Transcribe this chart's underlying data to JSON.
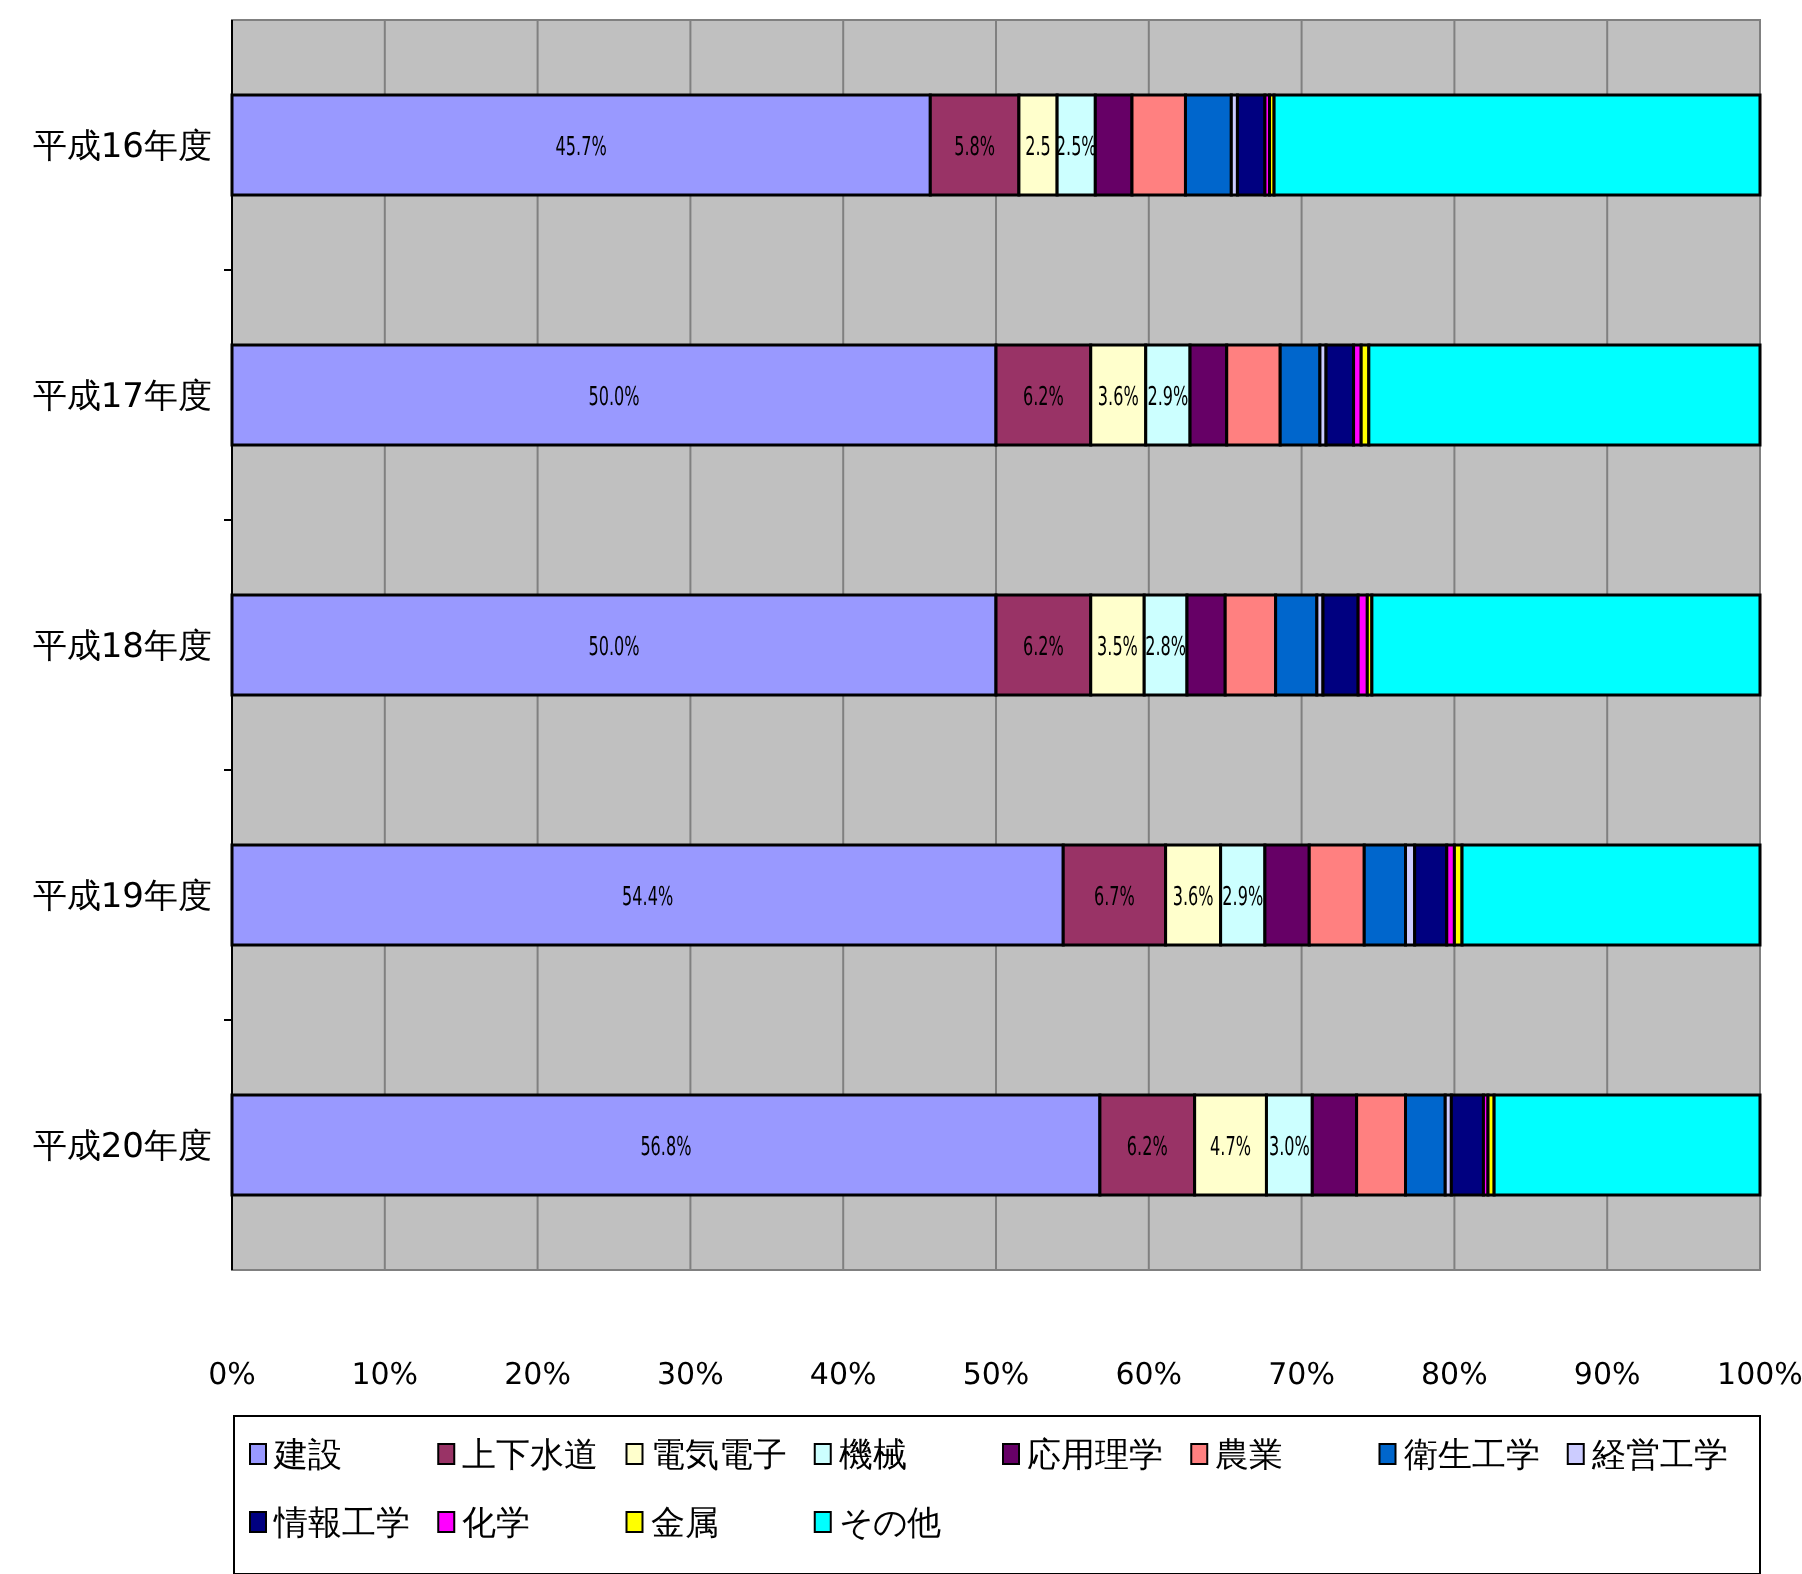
{
  "chart_data": {
    "type": "bar",
    "orientation": "horizontal",
    "stacked": true,
    "categories": [
      "平成16年度",
      "平成17年度",
      "平成18年度",
      "平成19年度",
      "平成20年度"
    ],
    "series": [
      {
        "name": "建設",
        "color": "#9999ff",
        "values": [
          45.7,
          50.0,
          50.0,
          54.4,
          56.8
        ],
        "value_labels": [
          "45.7%",
          "50.0%",
          "50.0%",
          "54.4%",
          "56.8%"
        ]
      },
      {
        "name": "上下水道",
        "color": "#993366",
        "values": [
          5.8,
          6.2,
          6.2,
          6.7,
          6.2
        ],
        "value_labels": [
          "5.8%",
          "6.2%",
          "6.2%",
          "6.7%",
          "6.2%"
        ]
      },
      {
        "name": "電気電子",
        "color": "#ffffcc",
        "values": [
          2.5,
          3.6,
          3.5,
          3.6,
          4.7
        ],
        "value_labels": [
          "2.5",
          "3.6%",
          "3.5%",
          "3.6%",
          "4.7%"
        ]
      },
      {
        "name": "機械",
        "color": "#ccffff",
        "values": [
          2.5,
          2.9,
          2.8,
          2.9,
          3.0
        ],
        "value_labels": [
          "2.5%",
          "2.9%",
          "2.8%",
          "2.9%",
          "3.0%"
        ]
      },
      {
        "name": "応用理学",
        "color": "#660066",
        "values": [
          2.4,
          2.4,
          2.5,
          2.9,
          2.9
        ]
      },
      {
        "name": "農業",
        "color": "#ff8080",
        "values": [
          3.5,
          3.5,
          3.3,
          3.6,
          3.2
        ]
      },
      {
        "name": "衛生工学",
        "color": "#0066cc",
        "values": [
          3.0,
          2.6,
          2.7,
          2.7,
          2.6
        ]
      },
      {
        "name": "経営工学",
        "color": "#ccccff",
        "values": [
          0.4,
          0.4,
          0.4,
          0.6,
          0.4
        ]
      },
      {
        "name": "情報工学",
        "color": "#000080",
        "values": [
          1.8,
          1.8,
          2.3,
          2.1,
          2.1
        ]
      },
      {
        "name": "化学",
        "color": "#ff00ff",
        "values": [
          0.3,
          0.5,
          0.6,
          0.5,
          0.3
        ]
      },
      {
        "name": "金属",
        "color": "#ffff00",
        "values": [
          0.3,
          0.5,
          0.3,
          0.5,
          0.4
        ]
      },
      {
        "name": "その他",
        "color": "#00ffff",
        "values": [
          31.8,
          25.6,
          25.4,
          19.5,
          17.4
        ]
      }
    ],
    "xlim": [
      0,
      100
    ],
    "xticks": [
      {
        "value": 0,
        "label": "0%"
      },
      {
        "value": 10,
        "label": "10%"
      },
      {
        "value": 20,
        "label": "20%"
      },
      {
        "value": 30,
        "label": "30%"
      },
      {
        "value": 40,
        "label": "40%"
      },
      {
        "value": 50,
        "label": "50%"
      },
      {
        "value": 60,
        "label": "60%"
      },
      {
        "value": 70,
        "label": "70%"
      },
      {
        "value": 80,
        "label": "80%"
      },
      {
        "value": 90,
        "label": "90%"
      },
      {
        "value": 100,
        "label": "100%"
      }
    ],
    "grid": "x",
    "legend": "bottom"
  }
}
